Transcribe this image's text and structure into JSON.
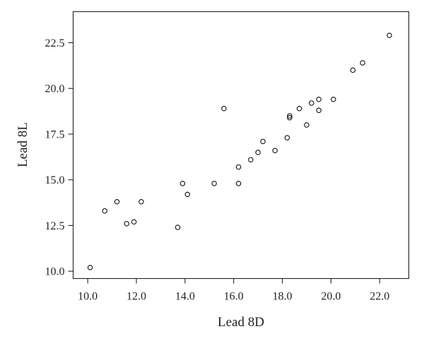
{
  "chart_data": {
    "type": "scatter",
    "title": "",
    "xlabel": "Lead 8D",
    "ylabel": "Lead 8L",
    "xlim": [
      9.4,
      23.2
    ],
    "ylim": [
      9.6,
      24.2
    ],
    "xticks": [
      "10.0",
      "12.0",
      "14.0",
      "16.0",
      "18.0",
      "20.0",
      "22.0"
    ],
    "yticks": [
      "10.0",
      "12.5",
      "15.0",
      "17.5",
      "20.0",
      "22.5"
    ],
    "grid": false,
    "legend": "none",
    "marker": "open-circle",
    "points": [
      {
        "x": 10.1,
        "y": 10.2
      },
      {
        "x": 10.7,
        "y": 13.3
      },
      {
        "x": 11.2,
        "y": 13.8
      },
      {
        "x": 11.6,
        "y": 12.6
      },
      {
        "x": 11.9,
        "y": 12.7
      },
      {
        "x": 12.2,
        "y": 13.8
      },
      {
        "x": 13.7,
        "y": 12.4
      },
      {
        "x": 13.9,
        "y": 14.8
      },
      {
        "x": 14.1,
        "y": 14.2
      },
      {
        "x": 15.2,
        "y": 14.8
      },
      {
        "x": 15.6,
        "y": 18.9
      },
      {
        "x": 16.2,
        "y": 15.7
      },
      {
        "x": 16.2,
        "y": 14.8
      },
      {
        "x": 16.7,
        "y": 16.1
      },
      {
        "x": 17.0,
        "y": 16.5
      },
      {
        "x": 17.2,
        "y": 17.1
      },
      {
        "x": 17.7,
        "y": 16.6
      },
      {
        "x": 18.2,
        "y": 17.3
      },
      {
        "x": 18.3,
        "y": 18.5
      },
      {
        "x": 18.3,
        "y": 18.4
      },
      {
        "x": 18.7,
        "y": 18.9
      },
      {
        "x": 19.0,
        "y": 18.0
      },
      {
        "x": 19.2,
        "y": 19.2
      },
      {
        "x": 19.5,
        "y": 19.4
      },
      {
        "x": 19.5,
        "y": 18.8
      },
      {
        "x": 20.1,
        "y": 19.4
      },
      {
        "x": 20.9,
        "y": 21.0
      },
      {
        "x": 21.3,
        "y": 21.4
      },
      {
        "x": 22.4,
        "y": 22.9
      }
    ]
  }
}
